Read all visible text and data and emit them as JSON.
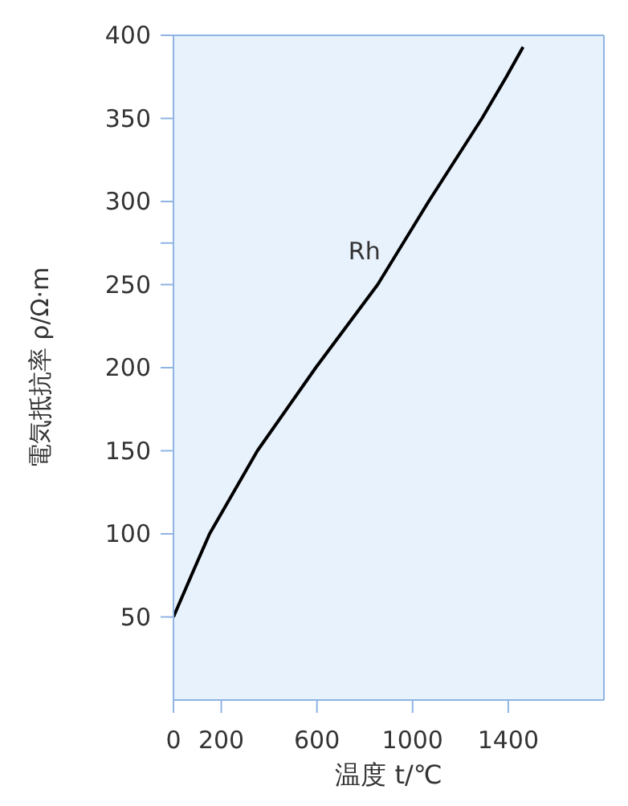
{
  "chart_data": {
    "type": "line",
    "xlabel": "温度 t/℃",
    "ylabel": "電気抵抗率 ρ/Ω·m",
    "x": [
      0,
      75,
      151,
      351,
      595,
      854,
      1067,
      1290,
      1392,
      1462
    ],
    "series": [
      {
        "name": "Rh",
        "color": "#000000",
        "values": [
          50,
          75,
          100,
          150,
          200,
          250,
          300,
          350,
          375,
          393
        ]
      }
    ],
    "xlim": [
      0,
      1800
    ],
    "xticks": [
      0,
      200,
      600,
      1000,
      1400
    ],
    "ylim": [
      0,
      400
    ],
    "yticks": [
      50,
      100,
      150,
      200,
      250,
      {
        "value": 275,
        "label": null
      },
      300,
      350,
      400
    ],
    "grid": false,
    "marker": "none",
    "line_style": "solid"
  }
}
